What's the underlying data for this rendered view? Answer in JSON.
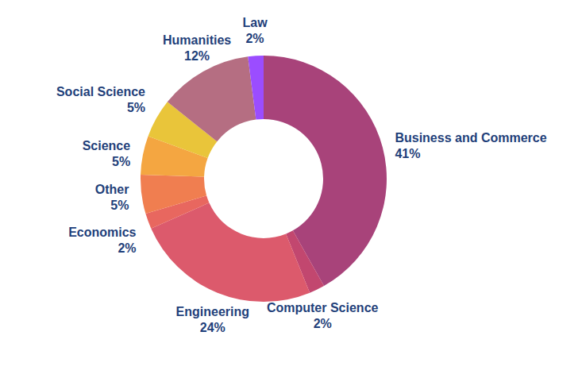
{
  "chart_data": {
    "type": "donut",
    "categories": [
      "Business and Commerce",
      "Computer Science",
      "Engineering",
      "Economics",
      "Other",
      "Science",
      "Social Science",
      "Humanities",
      "Law"
    ],
    "values": [
      41,
      2,
      24,
      2,
      5,
      5,
      5,
      12,
      2
    ],
    "value_labels": [
      "41%",
      "2%",
      "24%",
      "2%",
      "5%",
      "5%",
      "5%",
      "12%",
      "2%"
    ],
    "colors": [
      "#a8437a",
      "#c2476f",
      "#dc5a6c",
      "#e8675f",
      "#f07e50",
      "#f4a641",
      "#e9c53a",
      "#b56e82",
      "#9b4dff"
    ],
    "data_labels": true
  }
}
